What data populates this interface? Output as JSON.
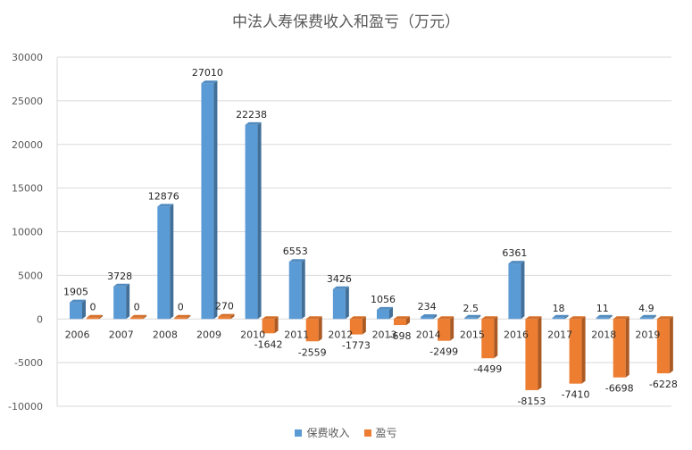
{
  "chart_data": {
    "type": "bar",
    "title": "中法人寿保费收入和盈亏（万元）",
    "categories": [
      "2006",
      "2007",
      "2008",
      "2009",
      "2010",
      "2011",
      "2012",
      "2013",
      "2014",
      "2015",
      "2016",
      "2017",
      "2018",
      "2019"
    ],
    "series": [
      {
        "name": "保费收入",
        "color": "#5B9BD5",
        "values": [
          1905,
          3728,
          12876,
          27010,
          22238,
          6553,
          3426,
          1056,
          234,
          2.5,
          6361,
          18,
          11,
          4.9
        ],
        "labels": [
          "1905",
          "3728",
          "12876",
          "27010",
          "22238",
          "6553",
          "3426",
          "1056",
          "234",
          "2.5",
          "6361",
          "18",
          "11",
          "4.9"
        ]
      },
      {
        "name": "盈亏",
        "color": "#ED7D31",
        "values": [
          0,
          0,
          0,
          270,
          -1642,
          -2559,
          -1773,
          -698,
          -2499,
          -4499,
          -8153,
          -7410,
          -6698,
          -6228
        ],
        "labels": [
          "0",
          "0",
          "0",
          "270",
          "-1642",
          "-2559",
          "-1773",
          "-698",
          "-2499",
          "-4499",
          "-8153",
          "-7410",
          "-6698",
          "-6228"
        ]
      }
    ],
    "ylim": [
      -10000,
      30000
    ],
    "yticks": [
      30000,
      25000,
      20000,
      15000,
      10000,
      5000,
      0,
      -5000,
      -10000
    ],
    "ytick_labels": [
      "30000",
      "25000",
      "20000",
      "15000",
      "10000",
      "5000",
      "0",
      "-5000",
      "-10000"
    ],
    "grid": true,
    "legend_position": "bottom",
    "style": "3d-clustered-column"
  }
}
